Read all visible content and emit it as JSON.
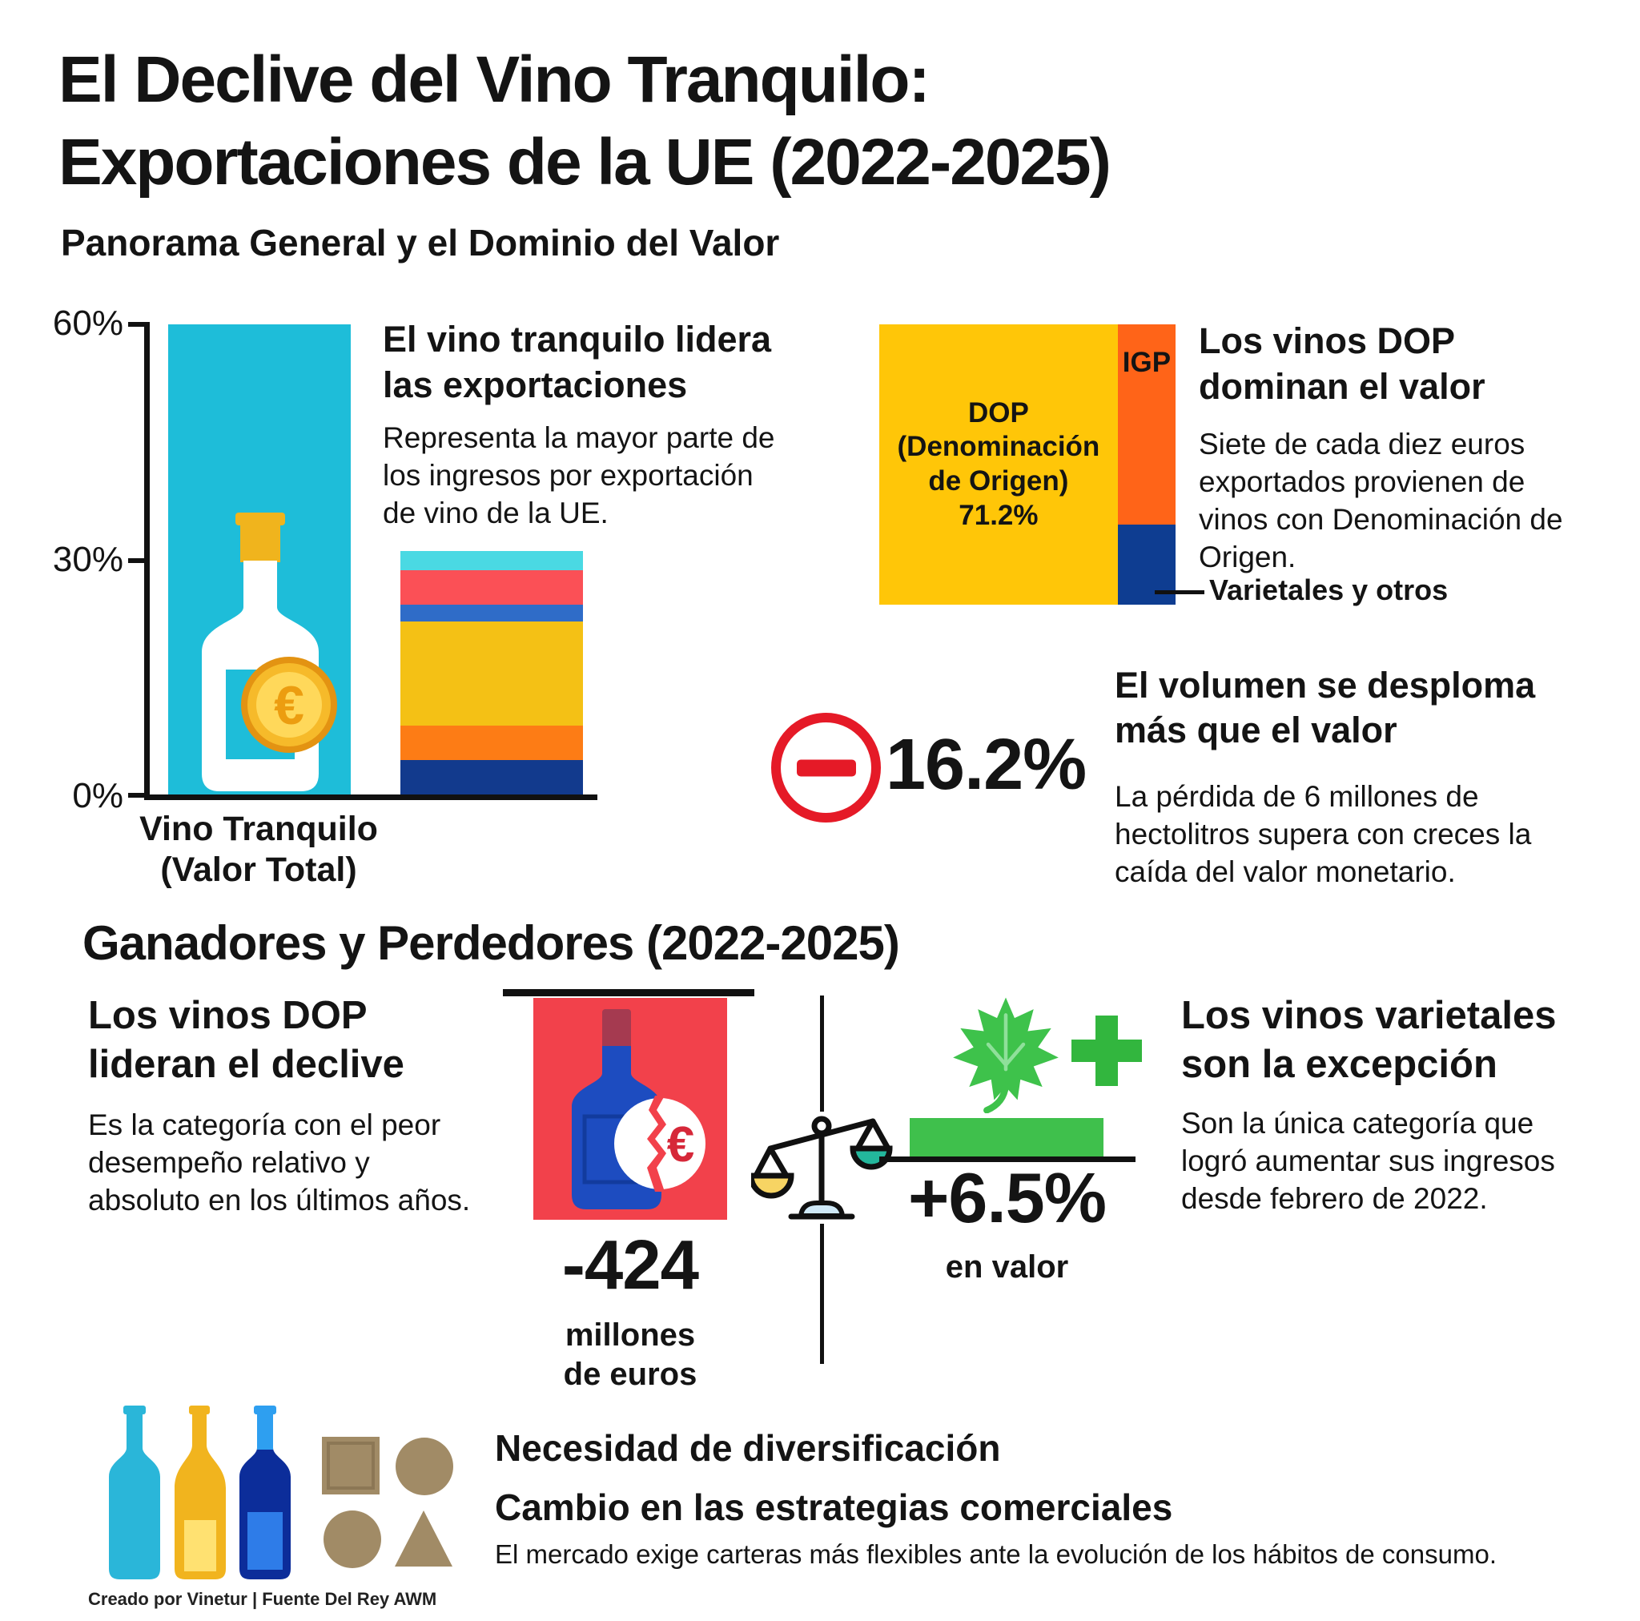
{
  "title": "El Declive del Vino Tranquilo:\nExportaciones de la UE (2022-2025)",
  "overview": {
    "heading": "Panorama General y el Dominio del Valor",
    "lead_block": {
      "heading": "El vino tranquilo lidera\nlas exportaciones",
      "body": "Representa la mayor parte de\nlos ingresos por exportación\nde vino de la UE."
    },
    "bar_label": "Vino Tranquilo\n(Valor Total)",
    "treemap": {
      "dop_label": "DOP\n(Denominación\nde Origen)\n71.2%",
      "igp_label": "IGP",
      "callout": "Varietales y otros"
    },
    "dop_block": {
      "heading": "Los vinos DOP\ndominan el valor",
      "body": "Siete de cada diez euros\nexportados provienen de\nvinos con Denominación de\nOrigen."
    },
    "volume_stat": {
      "value": "16.2%",
      "heading": "El volumen se desploma\nmás que el valor",
      "body": "La pérdida de 6 millones de\nhectolitros supera con creces la\ncaída del valor monetario."
    }
  },
  "winners_losers": {
    "heading": "Ganadores y Perdedores (2022-2025)",
    "losers": {
      "heading": "Los vinos DOP\nlideran el declive",
      "body": "Es la categoría con el peor\ndesempeño relativo y\nabsoluto en los últimos años.",
      "stat_value": "-424",
      "stat_unit": "millones\nde euros"
    },
    "winners": {
      "heading": "Los vinos varietales\nson la excepción",
      "body": "Son la única categoría que\nlogró aumentar sus ingresos\ndesde febrero de 2022.",
      "stat_value": "+6.5%",
      "stat_unit": "en valor"
    }
  },
  "diversification": {
    "heading": "Necesidad de diversificación\nCambio en las estrategias comerciales",
    "body": "El mercado exige carteras más flexibles ante la evolución de los hábitos de consumo.",
    "credit": "Creado por Vinetur | Fuente Del Rey AWM"
  },
  "colors": {
    "ink": "#141414",
    "bar_cyan": "#1ebdd9",
    "negative_red": "#e51a27",
    "loss_red": "#f2414b",
    "positive_green": "#3fc04c",
    "plus_green": "#32b63e",
    "shape_tan": "#a18b66"
  },
  "chart_data": [
    {
      "type": "bar",
      "title": "",
      "categories": [
        "Vino Tranquilo (Valor Total)",
        ""
      ],
      "y_ticks": [
        "60%",
        "30%",
        "0%"
      ],
      "ylim": [
        0,
        60
      ],
      "grid": false,
      "bars": [
        {
          "label": "Vino Tranquilo (Valor Total)",
          "value": 60,
          "color": "#1ebdd9"
        },
        {
          "label": "",
          "total": 31,
          "segments": [
            {
              "value": 2.4,
              "color": "#4ad9e3"
            },
            {
              "value": 4.4,
              "color": "#fb5056"
            },
            {
              "value": 2.2,
              "color": "#2f6cc8"
            },
            {
              "value": 13.2,
              "color": "#f4c115"
            },
            {
              "value": 4.4,
              "color": "#fd7c15"
            },
            {
              "value": 4.4,
              "color": "#123a8d"
            }
          ]
        }
      ]
    },
    {
      "type": "treemap",
      "slices": [
        {
          "label": "DOP (Denominación de Origen)",
          "value": 71.2,
          "color": "#ffc608"
        },
        {
          "label": "IGP",
          "color": "#ff6418"
        },
        {
          "label": "Varietales y otros",
          "color": "#0e3d91"
        }
      ]
    }
  ]
}
